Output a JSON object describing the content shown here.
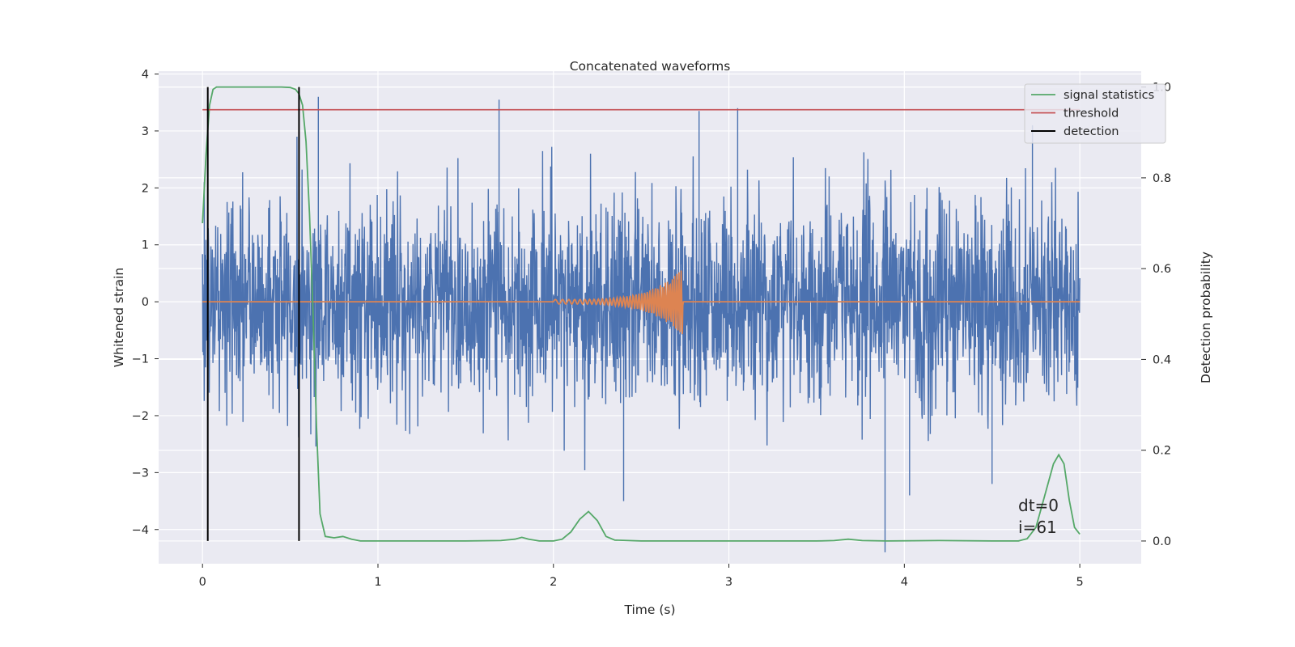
{
  "chart_data": {
    "type": "line",
    "title": "Concatenated waveforms",
    "xlabel": "Time (s)",
    "ylabel": "Whitened strain",
    "ylabel_right": "Detection probability",
    "xlim": [
      -0.25,
      5.35
    ],
    "ylim": [
      -4.6,
      4.05
    ],
    "ylim_right": [
      -0.05,
      1.035
    ],
    "xticks": [
      0,
      1,
      2,
      3,
      4,
      5
    ],
    "yticks": [
      -4,
      -3,
      -2,
      -1,
      0,
      1,
      2,
      3,
      4
    ],
    "yticks_right": [
      0.0,
      0.2,
      0.4,
      0.6,
      0.8,
      1.0
    ],
    "grid": true,
    "legend_position": "top-right",
    "colors": {
      "strain": "#4c72b0",
      "template": "#dd8452",
      "signal_statistics": "#55a868",
      "threshold": "#c44e52",
      "detection": "#000000",
      "background": "#eaeaf2",
      "grid": "#ffffff"
    },
    "series": [
      {
        "name": "signal statistics",
        "axis": "right",
        "x": [
          0.0,
          0.02,
          0.04,
          0.06,
          0.08,
          0.1,
          0.15,
          0.2,
          0.3,
          0.4,
          0.45,
          0.5,
          0.53,
          0.55,
          0.57,
          0.59,
          0.61,
          0.63,
          0.65,
          0.67,
          0.7,
          0.75,
          0.8,
          0.85,
          0.9,
          1.0,
          1.2,
          1.5,
          1.7,
          1.78,
          1.82,
          1.86,
          1.92,
          2.0,
          2.05,
          2.1,
          2.15,
          2.2,
          2.25,
          2.3,
          2.35,
          2.5,
          3.0,
          3.5,
          3.6,
          3.68,
          3.76,
          3.9,
          4.2,
          4.5,
          4.65,
          4.7,
          4.75,
          4.8,
          4.85,
          4.88,
          4.91,
          4.94,
          4.97,
          5.0
        ],
        "y": [
          0.7,
          0.85,
          0.96,
          0.995,
          1.0,
          1.0,
          1.0,
          1.0,
          1.0,
          1.0,
          1.0,
          0.999,
          0.995,
          0.985,
          0.96,
          0.88,
          0.72,
          0.5,
          0.25,
          0.06,
          0.01,
          0.007,
          0.01,
          0.004,
          0.0,
          0.0,
          0.0,
          0.0,
          0.001,
          0.004,
          0.008,
          0.004,
          0.0,
          0.0,
          0.004,
          0.02,
          0.048,
          0.065,
          0.045,
          0.01,
          0.002,
          0.0,
          0.0,
          0.0,
          0.001,
          0.004,
          0.001,
          0.0,
          0.001,
          0.0,
          0.0,
          0.005,
          0.03,
          0.1,
          0.17,
          0.19,
          0.17,
          0.09,
          0.03,
          0.015
        ]
      },
      {
        "name": "threshold",
        "axis": "right",
        "x": [
          0.0,
          5.0
        ],
        "y": [
          0.95,
          0.95
        ]
      },
      {
        "name": "detection",
        "axis": "right",
        "vlines_x": [
          0.03,
          0.55
        ],
        "y_range": [
          0.0,
          1.0
        ]
      }
    ],
    "annotation": [
      "dt=0",
      "i=61"
    ]
  }
}
